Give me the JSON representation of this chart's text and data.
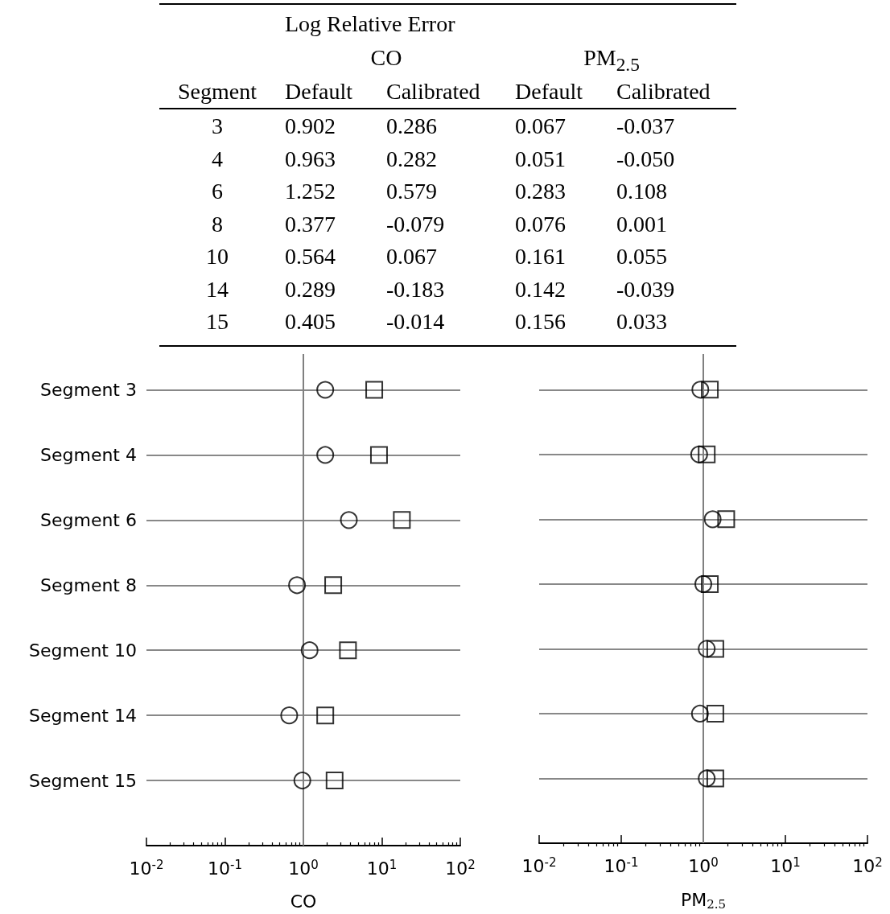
{
  "chart_data": [
    {
      "type": "other",
      "title": "Log Relative Error",
      "annotations": [
        "CO",
        "PM$_{2.5}$",
        "Segment",
        "Default",
        "Calibrated",
        "Default",
        "Calibrated"
      ],
      "cell_labels": [
        [
          "3",
          "0.902",
          "0.286",
          "0.067",
          "-0.037"
        ],
        [
          "4",
          "0.963",
          "0.282",
          "0.051",
          "-0.050"
        ],
        [
          "6",
          "1.252",
          "0.579",
          "0.283",
          "0.108"
        ],
        [
          "8",
          "0.377",
          "-0.079",
          "0.076",
          "0.001"
        ],
        [
          "10",
          "0.564",
          "0.067",
          "0.161",
          "0.055"
        ],
        [
          "14",
          "0.289",
          "-0.183",
          "0.142",
          "-0.039"
        ],
        [
          "15",
          "0.405",
          "-0.014",
          "0.156",
          "0.033"
        ]
      ]
    },
    {
      "type": "scatter",
      "orientation": "horizontal",
      "xlabel": "CO",
      "log": "x",
      "categories": [
        "Segment 3",
        "Segment 4",
        "Segment 6",
        "Segment 8",
        "Segment 10",
        "Segment 14",
        "Segment 15"
      ],
      "series": [
        {
          "color": "#000000",
          "marker": "square",
          "values": [
            8.0,
            9.2,
            18,
            2.4,
            3.7,
            1.9,
            2.5
          ]
        },
        {
          "color": "#000000",
          "marker": "circle",
          "values": [
            1.9,
            1.9,
            3.8,
            0.83,
            1.2,
            0.66,
            0.97
          ]
        }
      ],
      "xlim": [
        0.01,
        100
      ],
      "xticks": [
        {
          "value": 0.01,
          "label": "10$^{-2}$"
        },
        {
          "value": 0.1,
          "label": "10$^{-1}$"
        },
        {
          "value": 1,
          "label": "10$^{0}$"
        },
        {
          "value": 10,
          "label": "10$^{1}$"
        },
        {
          "value": 100,
          "label": "10$^{2}$"
        },
        {
          "value": 0.02,
          "label": null
        },
        {
          "value": 0.03,
          "label": null
        },
        {
          "value": 0.04,
          "label": null
        },
        {
          "value": 0.05,
          "label": null
        },
        {
          "value": 0.06,
          "label": null
        },
        {
          "value": 0.07,
          "label": null
        },
        {
          "value": 0.08,
          "label": null
        },
        {
          "value": 0.09,
          "label": null
        },
        {
          "value": 0.2,
          "label": null
        },
        {
          "value": 0.3,
          "label": null
        },
        {
          "value": 0.4,
          "label": null
        },
        {
          "value": 0.5,
          "label": null
        },
        {
          "value": 0.6,
          "label": null
        },
        {
          "value": 0.7,
          "label": null
        },
        {
          "value": 0.8,
          "label": null
        },
        {
          "value": 0.9,
          "label": null
        },
        {
          "value": 2,
          "label": null
        },
        {
          "value": 3,
          "label": null
        },
        {
          "value": 4,
          "label": null
        },
        {
          "value": 5,
          "label": null
        },
        {
          "value": 6,
          "label": null
        },
        {
          "value": 7,
          "label": null
        },
        {
          "value": 8,
          "label": null
        },
        {
          "value": 9,
          "label": null
        },
        {
          "value": 20,
          "label": null
        },
        {
          "value": 30,
          "label": null
        },
        {
          "value": 40,
          "label": null
        },
        {
          "value": 50,
          "label": null
        },
        {
          "value": 60,
          "label": null
        },
        {
          "value": 70,
          "label": null
        },
        {
          "value": 80,
          "label": null
        },
        {
          "value": 90,
          "label": null
        }
      ],
      "ref_lines": [
        {
          "axis": "x",
          "value": 1,
          "color": "#808080"
        }
      ],
      "grid": "y"
    },
    {
      "type": "scatter",
      "orientation": "horizontal",
      "xlabel": "PM$_{2.5}$",
      "log": "x",
      "categories": [
        null,
        null,
        null,
        null,
        null,
        null,
        null
      ],
      "series": [
        {
          "color": "#000000",
          "marker": "square",
          "values": [
            1.2,
            1.1,
            1.9,
            1.2,
            1.4,
            1.4,
            1.4
          ]
        },
        {
          "color": "#000000",
          "marker": "circle",
          "values": [
            0.92,
            0.89,
            1.3,
            1.0,
            1.1,
            0.91,
            1.1
          ]
        }
      ],
      "xlim": [
        0.01,
        100
      ],
      "xticks": [
        {
          "value": 0.01,
          "label": "10$^{-2}$"
        },
        {
          "value": 0.1,
          "label": "10$^{-1}$"
        },
        {
          "value": 1,
          "label": "10$^{0}$"
        },
        {
          "value": 10,
          "label": "10$^{1}$"
        },
        {
          "value": 100,
          "label": "10$^{2}$"
        },
        {
          "value": 0.02,
          "label": null
        },
        {
          "value": 0.03,
          "label": null
        },
        {
          "value": 0.04,
          "label": null
        },
        {
          "value": 0.05,
          "label": null
        },
        {
          "value": 0.06,
          "label": null
        },
        {
          "value": 0.07,
          "label": null
        },
        {
          "value": 0.08,
          "label": null
        },
        {
          "value": 0.09,
          "label": null
        },
        {
          "value": 0.2,
          "label": null
        },
        {
          "value": 0.3,
          "label": null
        },
        {
          "value": 0.4,
          "label": null
        },
        {
          "value": 0.5,
          "label": null
        },
        {
          "value": 0.6,
          "label": null
        },
        {
          "value": 0.7,
          "label": null
        },
        {
          "value": 0.8,
          "label": null
        },
        {
          "value": 0.9,
          "label": null
        },
        {
          "value": 2,
          "label": null
        },
        {
          "value": 3,
          "label": null
        },
        {
          "value": 4,
          "label": null
        },
        {
          "value": 5,
          "label": null
        },
        {
          "value": 6,
          "label": null
        },
        {
          "value": 7,
          "label": null
        },
        {
          "value": 8,
          "label": null
        },
        {
          "value": 9,
          "label": null
        },
        {
          "value": 20,
          "label": null
        },
        {
          "value": 30,
          "label": null
        },
        {
          "value": 40,
          "label": null
        },
        {
          "value": 50,
          "label": null
        },
        {
          "value": 60,
          "label": null
        },
        {
          "value": 70,
          "label": null
        },
        {
          "value": 80,
          "label": null
        },
        {
          "value": 90,
          "label": null
        }
      ],
      "ref_lines": [
        {
          "axis": "x",
          "value": 1,
          "color": "#808080"
        }
      ],
      "grid": "y"
    }
  ]
}
